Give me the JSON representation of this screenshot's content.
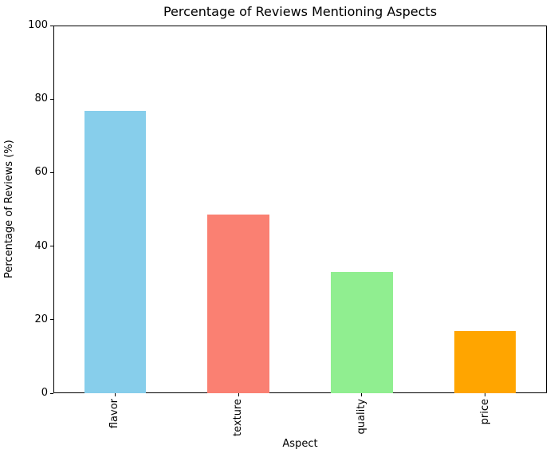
{
  "chart_data": {
    "type": "bar",
    "title": "Percentage of Reviews Mentioning Aspects",
    "xlabel": "Aspect",
    "ylabel": "Percentage of Reviews (%)",
    "categories": [
      "flavor",
      "texture",
      "quality",
      "price"
    ],
    "values": [
      76.8,
      48.6,
      33.0,
      16.9
    ],
    "bar_colors": [
      "#87CEEB",
      "#FA8072",
      "#90EE90",
      "#FFA500"
    ],
    "ylim": [
      0,
      100
    ],
    "yticks": [
      0,
      20,
      40,
      60,
      80,
      100
    ],
    "x_tick_rotation": 90,
    "grid": false,
    "legend": "none",
    "background_color": "#ffffff",
    "axis_color": "#000000"
  }
}
